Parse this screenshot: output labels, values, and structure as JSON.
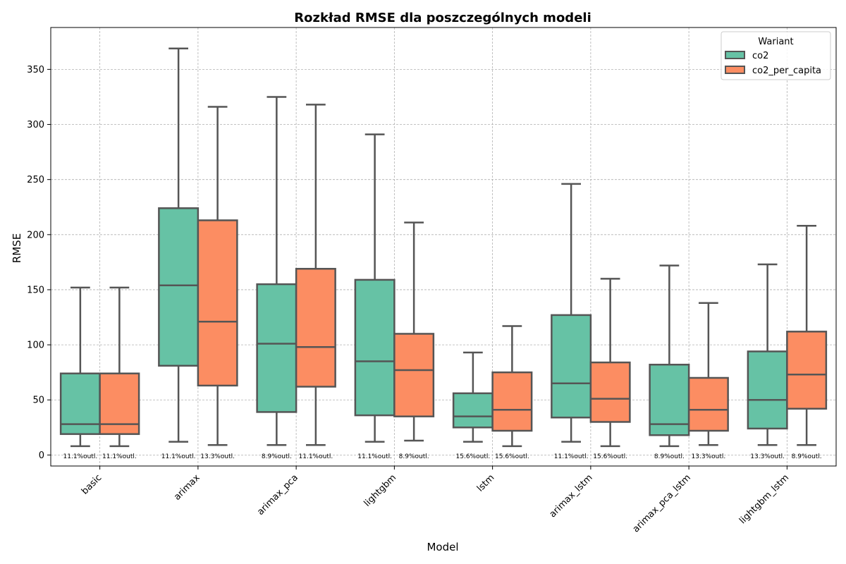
{
  "chart_data": {
    "type": "box",
    "title": "Rozkład RMSE dla poszczególnych modeli",
    "xlabel": "Model",
    "ylabel": "RMSE",
    "ylim": [
      -10,
      388
    ],
    "yticks": [
      0,
      50,
      100,
      150,
      200,
      250,
      300,
      350
    ],
    "grid": true,
    "legend": {
      "title": "Wariant",
      "placement": "top-right"
    },
    "categories": [
      "basic",
      "arimax",
      "arimax_pca",
      "lightgbm",
      "lstm",
      "arimax_lstm",
      "arimax_pca_lstm",
      "lightgbm_lstm"
    ],
    "series": [
      {
        "name": "co2",
        "color": "#66c2a5",
        "boxes": [
          {
            "whisker_low": 8,
            "q1": 19,
            "median": 28,
            "q3": 74,
            "whisker_high": 152,
            "outlier_label": "11.1%outl."
          },
          {
            "whisker_low": 12,
            "q1": 81,
            "median": 154,
            "q3": 224,
            "whisker_high": 369,
            "outlier_label": "11.1%outl."
          },
          {
            "whisker_low": 9,
            "q1": 39,
            "median": 101,
            "q3": 155,
            "whisker_high": 325,
            "outlier_label": "8.9%outl."
          },
          {
            "whisker_low": 12,
            "q1": 36,
            "median": 85,
            "q3": 159,
            "whisker_high": 291,
            "outlier_label": "11.1%outl."
          },
          {
            "whisker_low": 12,
            "q1": 25,
            "median": 35,
            "q3": 56,
            "whisker_high": 93,
            "outlier_label": "15.6%outl."
          },
          {
            "whisker_low": 12,
            "q1": 34,
            "median": 65,
            "q3": 127,
            "whisker_high": 246,
            "outlier_label": "11.1%outl."
          },
          {
            "whisker_low": 8,
            "q1": 18,
            "median": 28,
            "q3": 82,
            "whisker_high": 172,
            "outlier_label": "8.9%outl."
          },
          {
            "whisker_low": 9,
            "q1": 24,
            "median": 50,
            "q3": 94,
            "whisker_high": 173,
            "outlier_label": "13.3%outl."
          }
        ]
      },
      {
        "name": "co2_per_capita",
        "color": "#fc8d62",
        "boxes": [
          {
            "whisker_low": 8,
            "q1": 19,
            "median": 28,
            "q3": 74,
            "whisker_high": 152,
            "outlier_label": "11.1%outl."
          },
          {
            "whisker_low": 9,
            "q1": 63,
            "median": 121,
            "q3": 213,
            "whisker_high": 316,
            "outlier_label": "13.3%outl."
          },
          {
            "whisker_low": 9,
            "q1": 62,
            "median": 98,
            "q3": 169,
            "whisker_high": 318,
            "outlier_label": "11.1%outl."
          },
          {
            "whisker_low": 13,
            "q1": 35,
            "median": 77,
            "q3": 110,
            "whisker_high": 211,
            "outlier_label": "8.9%outl."
          },
          {
            "whisker_low": 8,
            "q1": 22,
            "median": 41,
            "q3": 75,
            "whisker_high": 117,
            "outlier_label": "15.6%outl."
          },
          {
            "whisker_low": 8,
            "q1": 30,
            "median": 51,
            "q3": 84,
            "whisker_high": 160,
            "outlier_label": "15.6%outl."
          },
          {
            "whisker_low": 9,
            "q1": 22,
            "median": 41,
            "q3": 70,
            "whisker_high": 138,
            "outlier_label": "13.3%outl."
          },
          {
            "whisker_low": 9,
            "q1": 42,
            "median": 73,
            "q3": 112,
            "whisker_high": 208,
            "outlier_label": "8.9%outl."
          }
        ]
      }
    ]
  }
}
